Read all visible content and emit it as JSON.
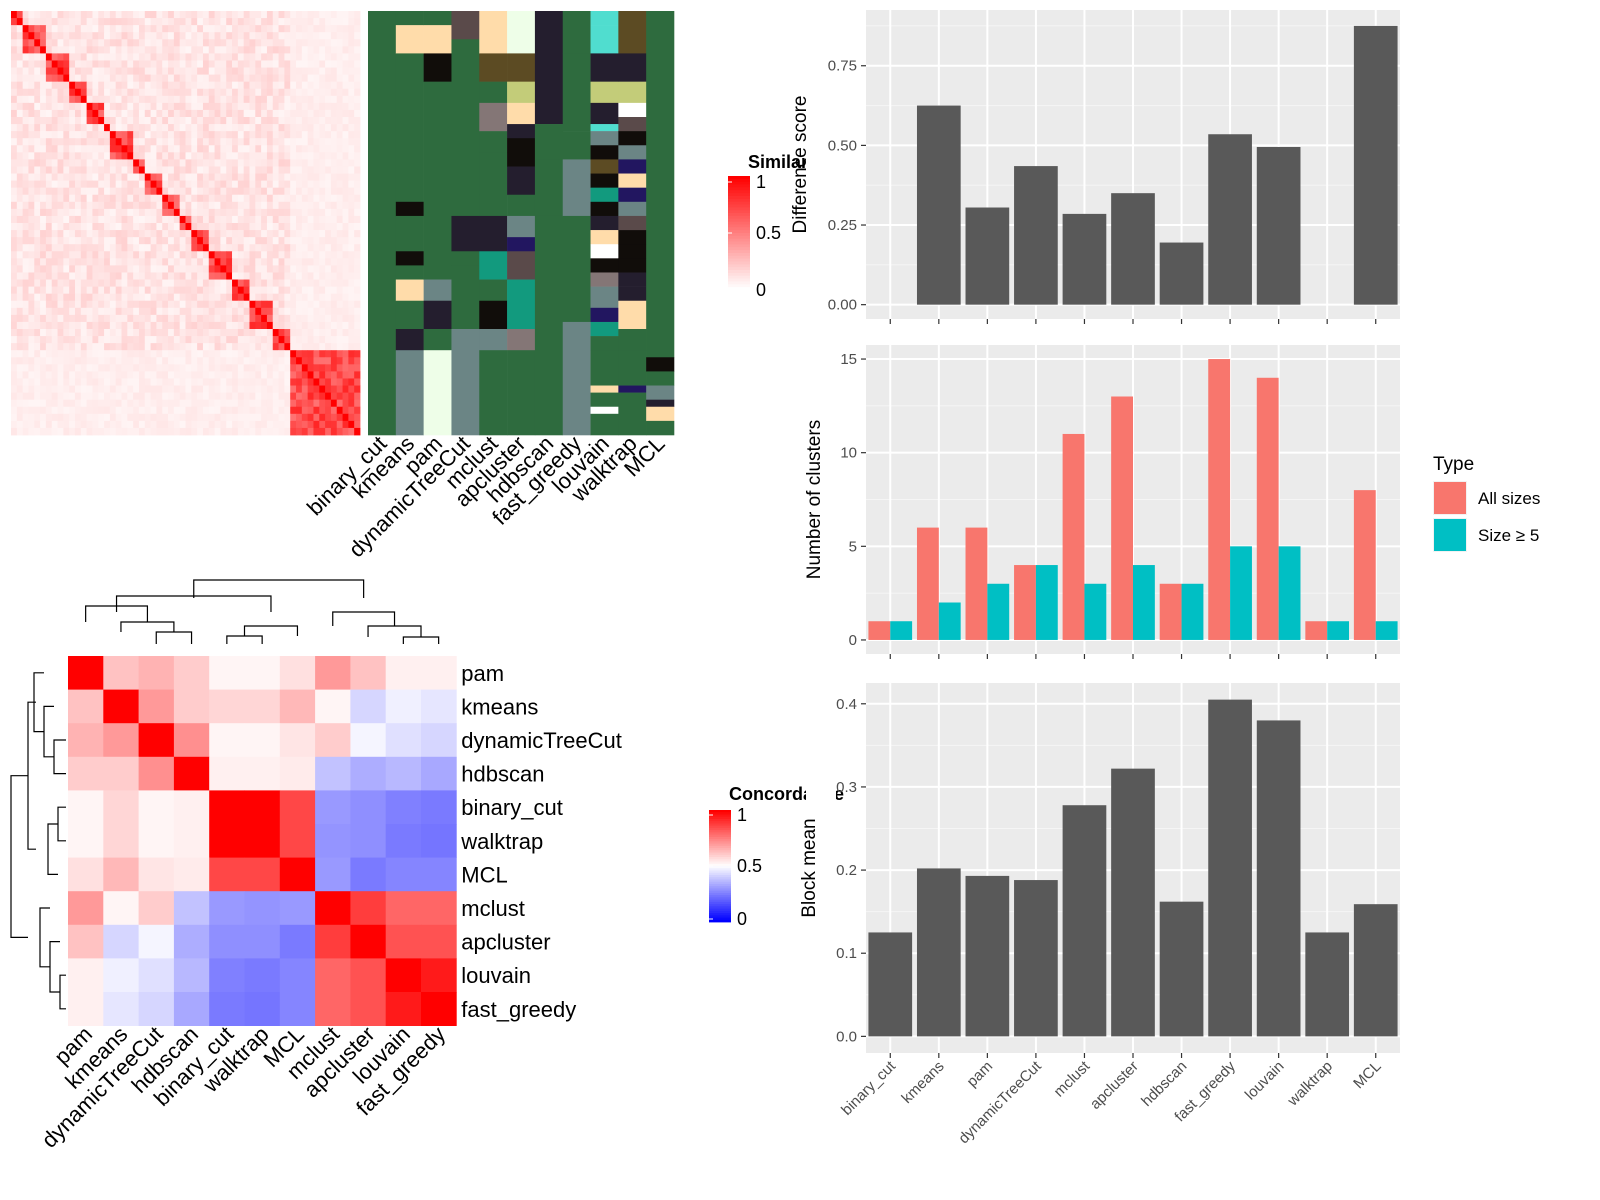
{
  "chart_data": [
    {
      "type": "heatmap",
      "name": "similarity-heatmap",
      "legend_title": "Similarity",
      "legend_ticks": [
        "1",
        "0.5",
        "0"
      ],
      "value_range": [
        0,
        1
      ],
      "colors": {
        "low": "#ffffff",
        "high": "#ff0000"
      },
      "n_rows": 60,
      "annotation_columns": [
        "binary_cut",
        "kmeans",
        "pam",
        "dynamicTreeCut",
        "mclust",
        "apcluster",
        "hdbscan",
        "fast_greedy",
        "louvain",
        "walktrap",
        "MCL"
      ],
      "annotation_palette": [
        "#2e6b3e",
        "#ffdcaa",
        "#5a4a4a",
        "#eefee8",
        "#241e2e",
        "#50ddcf",
        "#5c4b23",
        "#110d0a",
        "#c3cc79",
        "#847676",
        "#6b8585",
        "#129a7e",
        "#221660",
        "#ffffff"
      ],
      "annotation_segments": [
        [
          [
            0,
            60,
            0
          ]
        ],
        [
          [
            0,
            2,
            0
          ],
          [
            2,
            6,
            1
          ],
          [
            6,
            27,
            0
          ],
          [
            27,
            29,
            7
          ],
          [
            29,
            34,
            0
          ],
          [
            34,
            36,
            7
          ],
          [
            36,
            38,
            0
          ],
          [
            38,
            41,
            1
          ],
          [
            41,
            45,
            0
          ],
          [
            45,
            48,
            4
          ],
          [
            48,
            60,
            10
          ]
        ],
        [
          [
            0,
            2,
            0
          ],
          [
            2,
            6,
            1
          ],
          [
            6,
            10,
            7
          ],
          [
            10,
            38,
            0
          ],
          [
            38,
            41,
            10
          ],
          [
            41,
            45,
            4
          ],
          [
            45,
            48,
            0
          ],
          [
            48,
            60,
            3
          ]
        ],
        [
          [
            0,
            4,
            2
          ],
          [
            4,
            29,
            0
          ],
          [
            29,
            34,
            4
          ],
          [
            34,
            36,
            0
          ],
          [
            36,
            41,
            0
          ],
          [
            41,
            45,
            0
          ],
          [
            45,
            60,
            10
          ]
        ],
        [
          [
            0,
            6,
            1
          ],
          [
            6,
            10,
            6
          ],
          [
            10,
            13,
            0
          ],
          [
            13,
            17,
            9
          ],
          [
            17,
            20,
            0
          ],
          [
            20,
            26,
            0
          ],
          [
            26,
            29,
            0
          ],
          [
            29,
            34,
            4
          ],
          [
            34,
            38,
            11
          ],
          [
            38,
            41,
            0
          ],
          [
            41,
            45,
            7
          ],
          [
            45,
            48,
            10
          ],
          [
            48,
            60,
            0
          ]
        ],
        [
          [
            0,
            6,
            3
          ],
          [
            6,
            10,
            6
          ],
          [
            10,
            13,
            8
          ],
          [
            13,
            16,
            1
          ],
          [
            16,
            18,
            4
          ],
          [
            18,
            22,
            7
          ],
          [
            22,
            26,
            4
          ],
          [
            26,
            29,
            0
          ],
          [
            29,
            32,
            10
          ],
          [
            32,
            34,
            12
          ],
          [
            34,
            38,
            2
          ],
          [
            38,
            45,
            11
          ],
          [
            45,
            48,
            9
          ],
          [
            48,
            60,
            0
          ]
        ],
        [
          [
            0,
            16,
            4
          ],
          [
            16,
            21,
            0
          ],
          [
            21,
            29,
            0
          ],
          [
            29,
            45,
            0
          ],
          [
            45,
            60,
            0
          ]
        ],
        [
          [
            0,
            6,
            0
          ],
          [
            6,
            17,
            0
          ],
          [
            17,
            21,
            0
          ],
          [
            21,
            29,
            10
          ],
          [
            29,
            44,
            0
          ],
          [
            44,
            60,
            10
          ]
        ],
        [
          [
            0,
            2,
            5
          ],
          [
            2,
            6,
            5
          ],
          [
            6,
            10,
            4
          ],
          [
            10,
            13,
            8
          ],
          [
            13,
            16,
            4
          ],
          [
            16,
            17,
            5
          ],
          [
            17,
            19,
            10
          ],
          [
            19,
            21,
            7
          ],
          [
            21,
            23,
            6
          ],
          [
            23,
            25,
            7
          ],
          [
            25,
            27,
            11
          ],
          [
            27,
            29,
            7
          ],
          [
            29,
            31,
            4
          ],
          [
            31,
            33,
            1
          ],
          [
            33,
            35,
            13
          ],
          [
            35,
            37,
            7
          ],
          [
            37,
            39,
            9
          ],
          [
            39,
            42,
            10
          ],
          [
            42,
            44,
            12
          ],
          [
            44,
            46,
            11
          ],
          [
            46,
            48,
            0
          ],
          [
            48,
            53,
            0
          ],
          [
            53,
            54,
            1
          ],
          [
            54,
            56,
            0
          ],
          [
            56,
            57,
            13
          ],
          [
            57,
            60,
            0
          ]
        ],
        [
          [
            0,
            6,
            6
          ],
          [
            6,
            10,
            4
          ],
          [
            10,
            13,
            8
          ],
          [
            13,
            15,
            13
          ],
          [
            15,
            17,
            2
          ],
          [
            17,
            19,
            7
          ],
          [
            19,
            21,
            10
          ],
          [
            21,
            23,
            12
          ],
          [
            23,
            25,
            1
          ],
          [
            25,
            27,
            12
          ],
          [
            27,
            29,
            10
          ],
          [
            29,
            31,
            2
          ],
          [
            31,
            33,
            7
          ],
          [
            33,
            35,
            7
          ],
          [
            35,
            37,
            7
          ],
          [
            37,
            39,
            4
          ],
          [
            39,
            41,
            4
          ],
          [
            41,
            45,
            1
          ],
          [
            45,
            48,
            0
          ],
          [
            48,
            53,
            0
          ],
          [
            53,
            54,
            12
          ],
          [
            54,
            60,
            0
          ]
        ],
        [
          [
            0,
            49,
            0
          ],
          [
            49,
            51,
            7
          ],
          [
            51,
            53,
            0
          ],
          [
            53,
            55,
            10
          ],
          [
            55,
            56,
            4
          ],
          [
            56,
            58,
            1
          ],
          [
            58,
            60,
            0
          ]
        ]
      ]
    },
    {
      "type": "heatmap",
      "name": "concordance-heatmap",
      "legend_title": "Concordance",
      "legend_ticks": [
        "1",
        "0.5",
        "0"
      ],
      "value_range": [
        0,
        1
      ],
      "colors": {
        "low": "#0000ff",
        "mid": "#ffffff",
        "high": "#ff0000"
      },
      "row_labels": [
        "pam",
        "kmeans",
        "dynamicTreeCut",
        "hdbscan",
        "binary_cut",
        "walktrap",
        "MCL",
        "mclust",
        "apcluster",
        "louvain",
        "fast_greedy"
      ],
      "col_labels": [
        "pam",
        "kmeans",
        "dynamicTreeCut",
        "hdbscan",
        "binary_cut",
        "walktrap",
        "MCL",
        "mclust",
        "apcluster",
        "louvain",
        "fast_greedy"
      ],
      "matrix": [
        [
          1.0,
          0.62,
          0.65,
          0.6,
          0.52,
          0.52,
          0.56,
          0.7,
          0.62,
          0.53,
          0.53
        ],
        [
          0.62,
          1.0,
          0.7,
          0.6,
          0.58,
          0.58,
          0.64,
          0.52,
          0.42,
          0.47,
          0.45
        ],
        [
          0.65,
          0.7,
          1.0,
          0.72,
          0.52,
          0.52,
          0.55,
          0.6,
          0.48,
          0.44,
          0.42
        ],
        [
          0.6,
          0.6,
          0.72,
          1.0,
          0.53,
          0.53,
          0.54,
          0.38,
          0.34,
          0.36,
          0.33
        ],
        [
          0.52,
          0.58,
          0.52,
          0.53,
          1.0,
          1.0,
          0.86,
          0.3,
          0.28,
          0.25,
          0.24
        ],
        [
          0.52,
          0.58,
          0.52,
          0.53,
          1.0,
          1.0,
          0.86,
          0.29,
          0.28,
          0.24,
          0.23
        ],
        [
          0.56,
          0.64,
          0.55,
          0.54,
          0.86,
          0.86,
          1.0,
          0.3,
          0.24,
          0.26,
          0.26
        ],
        [
          0.7,
          0.52,
          0.6,
          0.38,
          0.3,
          0.29,
          0.3,
          1.0,
          0.88,
          0.8,
          0.8
        ],
        [
          0.62,
          0.42,
          0.48,
          0.34,
          0.28,
          0.28,
          0.24,
          0.88,
          1.0,
          0.84,
          0.84
        ],
        [
          0.53,
          0.47,
          0.44,
          0.36,
          0.25,
          0.24,
          0.26,
          0.8,
          0.84,
          1.0,
          0.95
        ],
        [
          0.53,
          0.45,
          0.42,
          0.33,
          0.24,
          0.23,
          0.26,
          0.8,
          0.84,
          0.95,
          1.0
        ]
      ]
    },
    {
      "type": "bar",
      "name": "difference-score",
      "categories": [
        "binary_cut",
        "kmeans",
        "pam",
        "dynamicTreeCut",
        "mclust",
        "apcluster",
        "hdbscan",
        "fast_greedy",
        "louvain",
        "walktrap",
        "MCL"
      ],
      "values": [
        0,
        0.625,
        0.305,
        0.435,
        0.285,
        0.35,
        0.195,
        0.535,
        0.495,
        0,
        0.875
      ],
      "ylabel": "Difference score",
      "ylim": [
        -0.045,
        0.925
      ],
      "yticks": [
        0,
        0.25,
        0.5,
        0.75
      ],
      "ytick_labels": [
        "0.00",
        "0.25",
        "0.50",
        "0.75"
      ],
      "bar_color": "#595959",
      "panel_bg": "#ebebeb",
      "grid": true
    },
    {
      "type": "bar",
      "name": "number-of-clusters",
      "categories": [
        "binary_cut",
        "kmeans",
        "pam",
        "dynamicTreeCut",
        "mclust",
        "apcluster",
        "hdbscan",
        "fast_greedy",
        "louvain",
        "walktrap",
        "MCL"
      ],
      "series": [
        {
          "name": "All sizes",
          "color": "#f8766d",
          "values": [
            1,
            6,
            6,
            4,
            11,
            13,
            3,
            15,
            14,
            1,
            8
          ]
        },
        {
          "name": "Size ≥ 5",
          "color": "#00bfc4",
          "values": [
            1,
            2,
            3,
            4,
            3,
            4,
            3,
            5,
            5,
            1,
            1
          ]
        }
      ],
      "ylabel": "Number of clusters",
      "ylim": [
        -0.75,
        15.75
      ],
      "yticks": [
        0,
        5,
        10,
        15
      ],
      "ytick_labels": [
        "0",
        "5",
        "10",
        "15"
      ],
      "legend_title": "Type",
      "legend_position": "right",
      "panel_bg": "#ebebeb",
      "grid": true
    },
    {
      "type": "bar",
      "name": "block-mean",
      "categories": [
        "binary_cut",
        "kmeans",
        "pam",
        "dynamicTreeCut",
        "mclust",
        "apcluster",
        "hdbscan",
        "fast_greedy",
        "louvain",
        "walktrap",
        "MCL"
      ],
      "values": [
        0.125,
        0.202,
        0.193,
        0.188,
        0.278,
        0.322,
        0.162,
        0.405,
        0.38,
        0.125,
        0.159
      ],
      "ylabel": "Block mean",
      "ylim": [
        -0.02,
        0.425
      ],
      "yticks": [
        0,
        0.1,
        0.2,
        0.3,
        0.4
      ],
      "ytick_labels": [
        "0.0",
        "0.1",
        "0.2",
        "0.3",
        "0.4"
      ],
      "bar_color": "#595959",
      "panel_bg": "#ebebeb",
      "grid": true
    }
  ]
}
